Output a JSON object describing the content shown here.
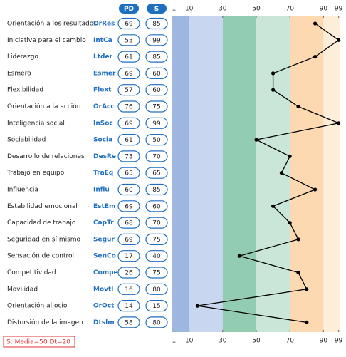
{
  "chart_data": {
    "type": "line",
    "categories": [
      "Orientación a los resultados",
      "Iniciativa para el cambio",
      "Liderazgo",
      "Esmero",
      "Flexibilidad",
      "Orientación a la acción",
      "Inteligencia social",
      "Sociabilidad",
      "Desarrollo de relaciones",
      "Trabajo en equipo",
      "Influencia",
      "Estabilidad emocional",
      "Capacidad de trabajo",
      "Seguridad en sí mismo",
      "Sensación de control",
      "Competitividad",
      "Movilidad",
      "Orientación al ocio",
      "Distorsión de la imagen"
    ],
    "codes": [
      "OrRes",
      "IntCa",
      "Ltder",
      "Esmer",
      "Flext",
      "OrAcc",
      "InSoc",
      "Socia",
      "DesRe",
      "TraEq",
      "Influ",
      "EstEm",
      "CapTr",
      "Segur",
      "SenCo",
      "Compe",
      "Movtl",
      "OrOct",
      "Dtslm"
    ],
    "pd_name": "PD",
    "pd_values": [
      69,
      53,
      61,
      69,
      57,
      76,
      69,
      61,
      73,
      65,
      60,
      69,
      68,
      69,
      17,
      26,
      16,
      14,
      58
    ],
    "series": [
      {
        "name": "S",
        "color": "#000000",
        "values": [
          85,
          99,
          85,
          60,
          60,
          75,
          99,
          50,
          70,
          65,
          85,
          60,
          70,
          75,
          40,
          75,
          80,
          15,
          80
        ]
      }
    ],
    "xlim": [
      0,
      100
    ],
    "xticks": [
      1,
      10,
      30,
      50,
      70,
      90,
      99
    ],
    "bands": [
      {
        "from": 0,
        "to": 10,
        "color": "#9db7e0"
      },
      {
        "from": 10,
        "to": 30,
        "color": "#c9d6ef"
      },
      {
        "from": 30,
        "to": 50,
        "color": "#93cdb1"
      },
      {
        "from": 50,
        "to": 70,
        "color": "#c9e6d9"
      },
      {
        "from": 70,
        "to": 90,
        "color": "#fcd9b1"
      },
      {
        "from": 90,
        "to": 100,
        "color": "#fdeed9"
      }
    ],
    "footnote": "S: Media=50 Dt=20"
  }
}
